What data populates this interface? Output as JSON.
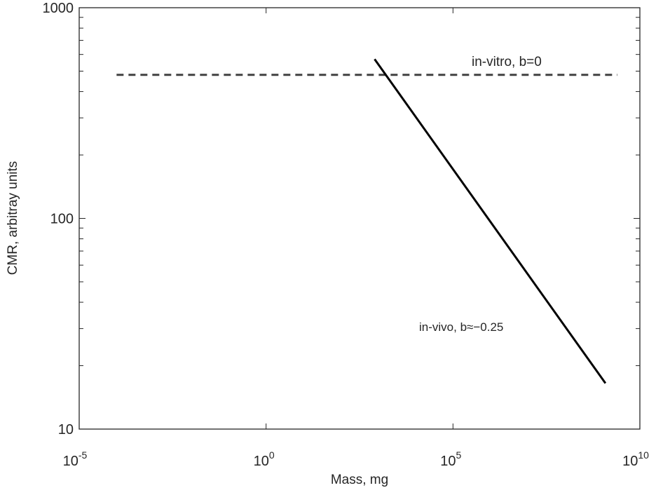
{
  "chart_data": {
    "type": "line",
    "title": "",
    "xlabel": "Mass, mg",
    "ylabel": "CMR, arbitray units",
    "xscale": "log",
    "yscale": "log",
    "xlim": [
      1e-05,
      10000000000.0
    ],
    "ylim": [
      10,
      1000
    ],
    "xticks": [
      {
        "value": 1e-05,
        "base": "10",
        "exp": "-5"
      },
      {
        "value": 1,
        "base": "10",
        "exp": "0"
      },
      {
        "value": 100000.0,
        "base": "10",
        "exp": "5"
      },
      {
        "value": 10000000000.0,
        "base": "10",
        "exp": "10"
      }
    ],
    "yticks": [
      {
        "value": 10,
        "label": "10"
      },
      {
        "value": 100,
        "label": "100"
      },
      {
        "value": 1000,
        "label": "1000"
      }
    ],
    "grid": false,
    "legend": "none",
    "series": [
      {
        "name": "in-vitro, b=0",
        "style": "dashed",
        "color": "#404040",
        "x": [
          0.0001,
          2500000000.0
        ],
        "y": [
          480,
          480
        ]
      },
      {
        "name": "in-vivo, b≈−0.25",
        "style": "solid",
        "color": "#000000",
        "x": [
          800,
          1200000000.0
        ],
        "y": [
          570,
          16.5
        ]
      }
    ],
    "annotations": [
      {
        "text": "in-vitro, b=0",
        "x": 30000000.0,
        "y": 560
      },
      {
        "text": "in-vivo, b≈−0.25",
        "x": 5000000.0,
        "y": 27
      }
    ]
  }
}
